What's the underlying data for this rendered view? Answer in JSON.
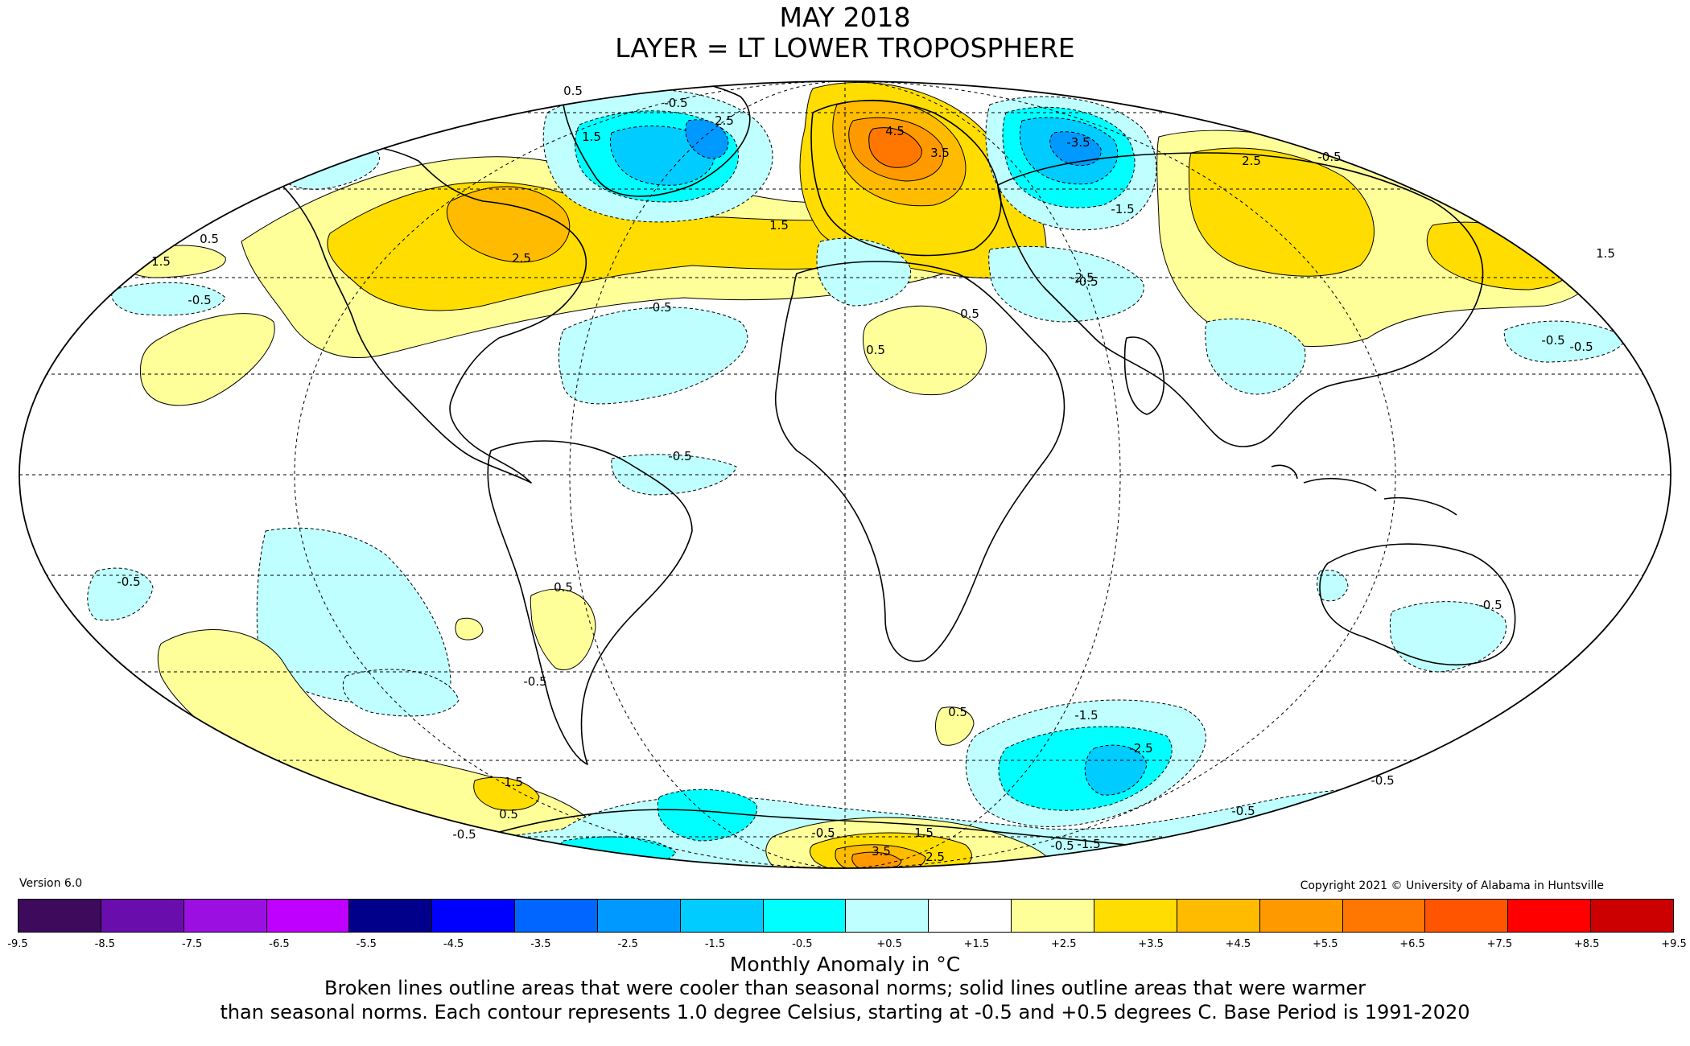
{
  "title": {
    "line1": "MAY 2018",
    "line2": "LAYER = LT LOWER TROPOSPHERE"
  },
  "version": "Version 6.0",
  "copyright": "Copyright 2021 © University of Alabama in Huntsville",
  "legend": {
    "units_label": "Monthly Anomaly in °C",
    "ticks": [
      "-9.5",
      "-8.5",
      "-7.5",
      "-6.5",
      "-5.5",
      "-4.5",
      "-3.5",
      "-2.5",
      "-1.5",
      "-0.5",
      "+0.5",
      "+1.5",
      "+2.5",
      "+3.5",
      "+4.5",
      "+5.5",
      "+6.5",
      "+7.5",
      "+8.5",
      "+9.5"
    ],
    "colors": [
      "#3d0a5c",
      "#6a0dad",
      "#9b10e0",
      "#bf00ff",
      "#00008b",
      "#0000ff",
      "#0066ff",
      "#0099ff",
      "#00ccff",
      "#00ffff",
      "#bfffff",
      "#ffffff",
      "#ffff99",
      "#ffdd00",
      "#ffbb00",
      "#ff9900",
      "#ff7700",
      "#ff5500",
      "#ff0000",
      "#cc0000"
    ]
  },
  "caption": {
    "line1": "Broken lines outline areas that were cooler than seasonal norms; solid lines outline areas that were warmer",
    "line2": "than seasonal norms. Each contour represents 1.0 degree Celsius, starting at -0.5 and +0.5 degrees C. Base Period is 1991-2020"
  },
  "map": {
    "projection": "mollweide",
    "colors": {
      "cool1": "#bfffff",
      "cool2": "#00ffff",
      "cool3": "#00ccff",
      "cool4": "#0099ff",
      "cool5": "#0066ff",
      "warm1": "#ffff99",
      "warm2": "#ffdd00",
      "warm3": "#ffbb00",
      "warm4": "#ff9900",
      "warm5": "#ff7700"
    },
    "contour_labels": [
      {
        "text": "0.5"
      },
      {
        "text": "-0.5"
      },
      {
        "text": "1.5"
      },
      {
        "text": "2.5"
      },
      {
        "text": "4.5"
      },
      {
        "text": "3.5"
      },
      {
        "text": "-3.5"
      },
      {
        "text": "-1.5"
      },
      {
        "text": "-2.5"
      },
      {
        "text": "0.5"
      },
      {
        "text": "1.5"
      },
      {
        "text": "2.5"
      },
      {
        "text": "-0.5"
      },
      {
        "text": "1.5"
      },
      {
        "text": "0.5"
      },
      {
        "text": "-0.5"
      },
      {
        "text": "-0.5"
      },
      {
        "text": "0.5"
      },
      {
        "text": "-0.5"
      },
      {
        "text": "-0.5"
      },
      {
        "text": "-0.5"
      },
      {
        "text": "-0.5"
      },
      {
        "text": "-0.5"
      },
      {
        "text": "0.5"
      },
      {
        "text": "1.5"
      },
      {
        "text": "0.5"
      },
      {
        "text": "-0.5"
      },
      {
        "text": "-1.5"
      },
      {
        "text": "-2.5"
      },
      {
        "text": "-0.5"
      },
      {
        "text": "-0.5"
      },
      {
        "text": "-0.5"
      },
      {
        "text": "3.5"
      },
      {
        "text": "1.5"
      },
      {
        "text": "2.5"
      },
      {
        "text": "-0.5"
      },
      {
        "text": "0.5"
      },
      {
        "text": "-0.5"
      },
      {
        "text": "1.5"
      },
      {
        "text": "2.5"
      },
      {
        "text": "-0.5"
      },
      {
        "text": "-1.5"
      }
    ]
  }
}
